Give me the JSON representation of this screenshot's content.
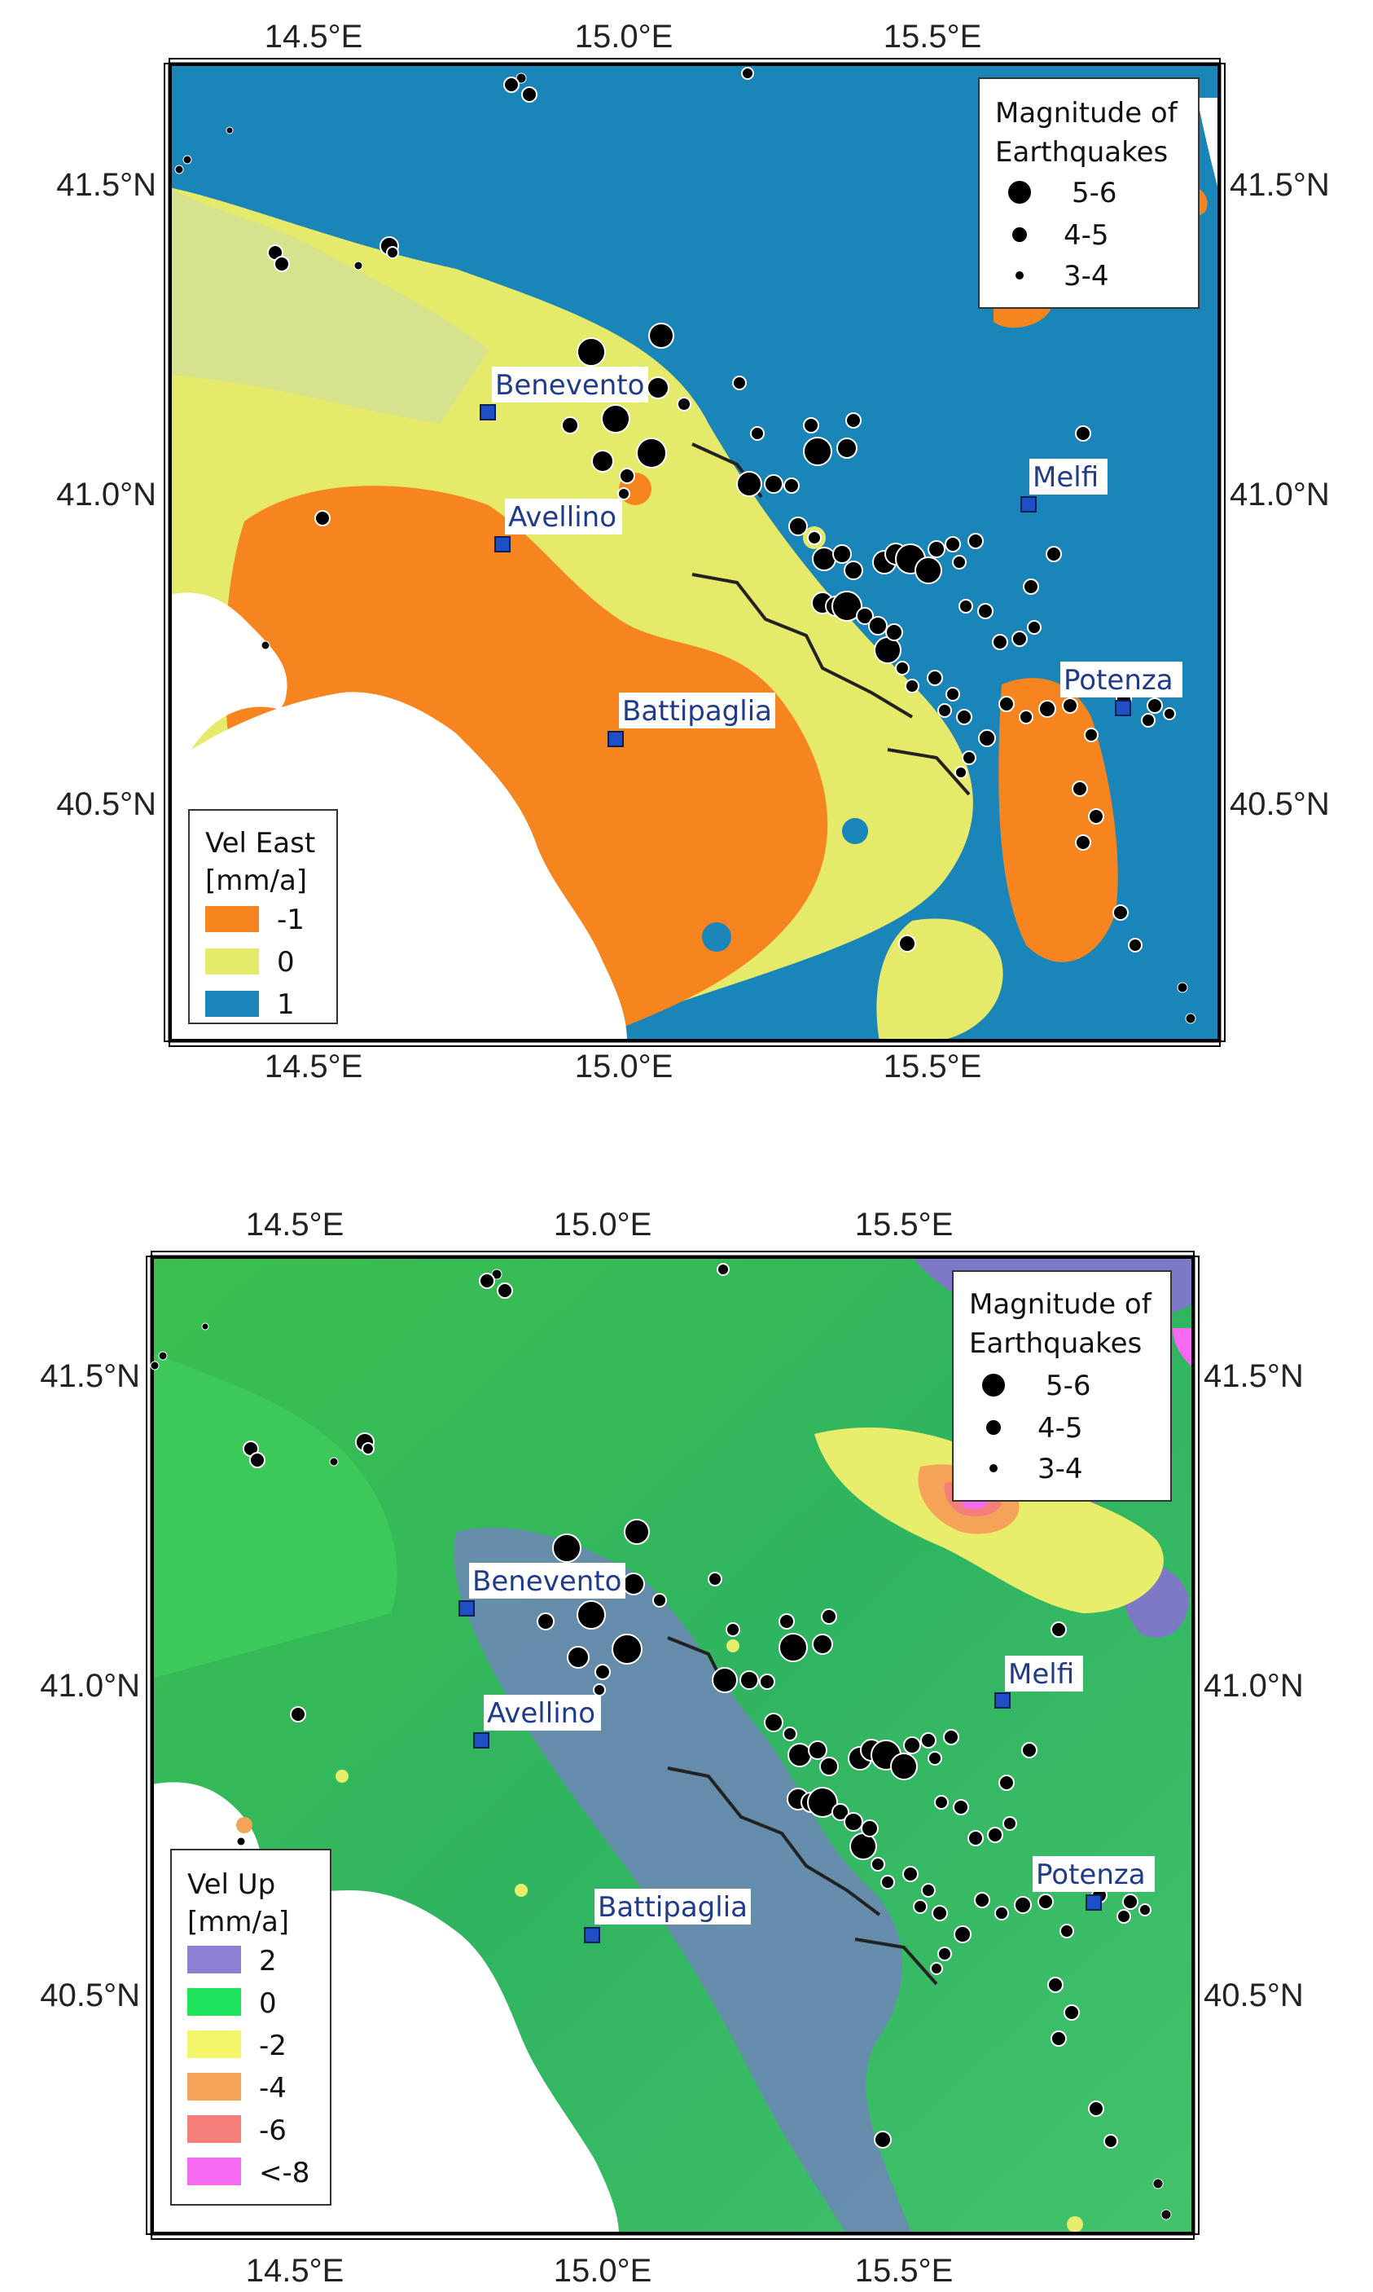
{
  "axes": {
    "lon_ticks": [
      "14.5°E",
      "15.0°E",
      "15.5°E"
    ],
    "lat_ticks": [
      "41.5°N",
      "41.0°N",
      "40.5°N"
    ]
  },
  "cities": [
    "Benevento",
    "Avellino",
    "Melfi",
    "Battipaglia",
    "Potenza"
  ],
  "magnitude_legend": {
    "title_line1": "Magnitude of",
    "title_line2": "Earthquakes",
    "classes": [
      "5-6",
      "4-5",
      "3-4"
    ]
  },
  "map_top": {
    "legend_title": "Vel East",
    "legend_unit": "[mm/a]",
    "legend_items": [
      {
        "label": "-1",
        "color": "#f7851f"
      },
      {
        "label": "0",
        "color": "#e6ea6b"
      },
      {
        "label": "1",
        "color": "#1a85b8"
      }
    ]
  },
  "map_bottom": {
    "legend_title": "Vel Up",
    "legend_unit": "[mm/a]",
    "legend_items": [
      {
        "label": "2",
        "color": "#8b80d4"
      },
      {
        "label": "0",
        "color": "#1fe35c"
      },
      {
        "label": "-2",
        "color": "#f3f56a"
      },
      {
        "label": "-4",
        "color": "#f7a35a"
      },
      {
        "label": "-6",
        "color": "#f47e78"
      },
      {
        "label": "<-8",
        "color": "#f56af0"
      }
    ]
  },
  "colors": {
    "sea": "#ffffff",
    "city_marker": "#1f4fc4",
    "city_label": "#1f3b8a",
    "quake_fill": "#000000",
    "top_base": "#1a85b8",
    "top_mid": "#e6ea6b",
    "top_low": "#f7851f",
    "bottom_base": "#29d35a",
    "bottom_up": "#8b80d4",
    "bottom_down": "#f56af0"
  }
}
